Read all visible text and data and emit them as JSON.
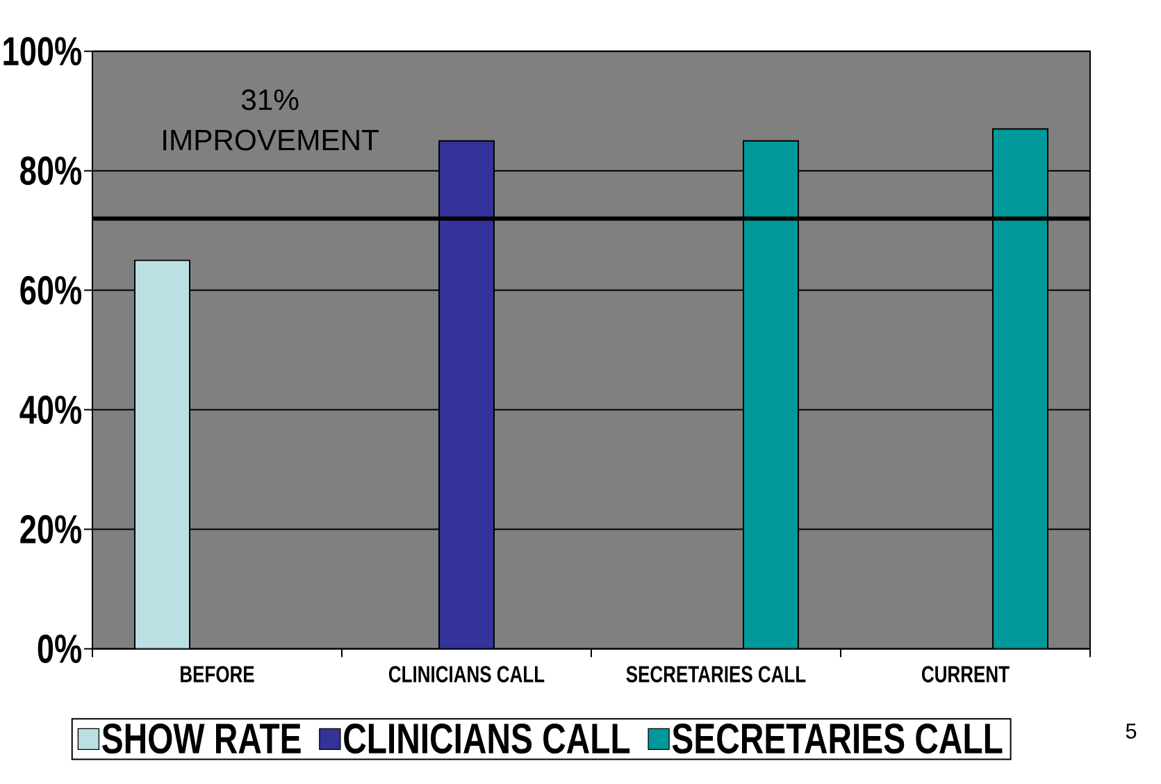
{
  "chart_data": {
    "type": "bar",
    "categories": [
      "BEFORE",
      "CLINICIANS CALL",
      "SECRETARIES CALL",
      "CURRENT"
    ],
    "series": [
      {
        "name": "SHOW RATE",
        "color": "#bbe0e3",
        "values": [
          65,
          null,
          null,
          null
        ]
      },
      {
        "name": "CLINICIANS CALL",
        "color": "#333399",
        "values": [
          null,
          85,
          null,
          null
        ]
      },
      {
        "name": "SECRETARIES CALL",
        "color": "#009999",
        "values": [
          null,
          null,
          85,
          87
        ]
      }
    ],
    "ylim": [
      0,
      100
    ],
    "yticks": [
      {
        "value": 0,
        "label": "0%"
      },
      {
        "value": 20,
        "label": "20%"
      },
      {
        "value": 40,
        "label": "40%"
      },
      {
        "value": 60,
        "label": "60%"
      },
      {
        "value": 80,
        "label": "80%"
      },
      {
        "value": 100,
        "label": "100%"
      }
    ],
    "grid": "y",
    "legend": "bottom",
    "ref_lines": [
      {
        "axis": "y",
        "value": 72,
        "color": "#000000"
      }
    ],
    "annotations": [
      "31% IMPROVEMENT",
      "5"
    ]
  }
}
